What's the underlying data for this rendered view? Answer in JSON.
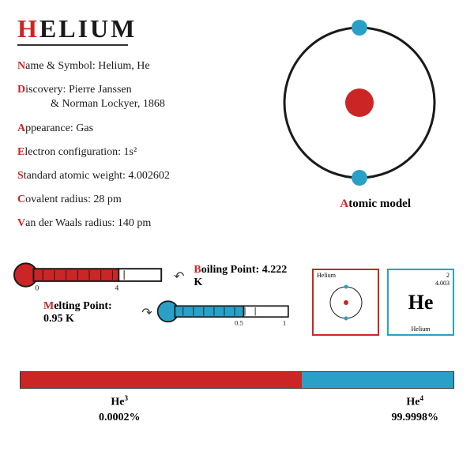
{
  "title": {
    "first_letter": "H",
    "rest": "ELIUM"
  },
  "facts": [
    {
      "label": "Name & Symbol:",
      "first": "N",
      "rest": "ame & Symbol:",
      "value": "Helium, He"
    },
    {
      "label": "Discovery:",
      "first": "D",
      "rest": "iscovery:",
      "value": "Pierre Janssen\n& Norman Lockyer, 1868"
    },
    {
      "label": "Appearance:",
      "first": "A",
      "rest": "ppearance:",
      "value": "Gas"
    },
    {
      "label": "Electron configuration:",
      "first": "E",
      "rest": "lectron configuration:",
      "value": "1s²"
    },
    {
      "label": "Standard atomic weight:",
      "first": "S",
      "rest": "tandard atomic weight:",
      "value": "4.002602"
    },
    {
      "label": "Covalent radius:",
      "first": "C",
      "rest": "ovalent radius:",
      "value": "28 pm"
    },
    {
      "label": "Van der Waals radius:",
      "first": "V",
      "rest": "an der Waals radius:",
      "value": "140 pm"
    }
  ],
  "atom": {
    "label_first": "A",
    "label_rest": "tomic model",
    "orbit_color": "#1a1a1a",
    "nucleus_color": "#cc2525",
    "electron_color": "#2aa0c8",
    "electrons": 2
  },
  "thermometers": {
    "boiling": {
      "label_first": "B",
      "label_rest": "oiling Point:",
      "value": "4.222 K",
      "color": "#cc2525",
      "ticks": [
        "0",
        "4"
      ],
      "fill_pct": 65
    },
    "melting": {
      "label_first": "M",
      "label_rest": "elting Point:",
      "value": "0.95 K",
      "color": "#2aa0c8",
      "ticks": [
        "0.5",
        "1"
      ],
      "fill_pct": 60
    }
  },
  "periodic_boxes": {
    "left": {
      "border": "#cc2525",
      "top": "Helium",
      "center_type": "atom"
    },
    "right": {
      "border": "#2aa0c8",
      "tr1": "2",
      "tr2": "4.003",
      "symbol": "He",
      "bottom": "Helium"
    }
  },
  "isotopes": {
    "bar_colors": {
      "he3": "#cc2525",
      "he4": "#2aa0c8"
    },
    "he3": {
      "label": "He",
      "sup": "3",
      "pct": "0.0002%",
      "width_pct": 65
    },
    "he4": {
      "label": "He",
      "sup": "4",
      "pct": "99.9998%",
      "width_pct": 35
    }
  },
  "colors": {
    "accent_red": "#cc2525",
    "accent_blue": "#2aa0c8",
    "text": "#1a1a1a",
    "background": "#ffffff"
  }
}
